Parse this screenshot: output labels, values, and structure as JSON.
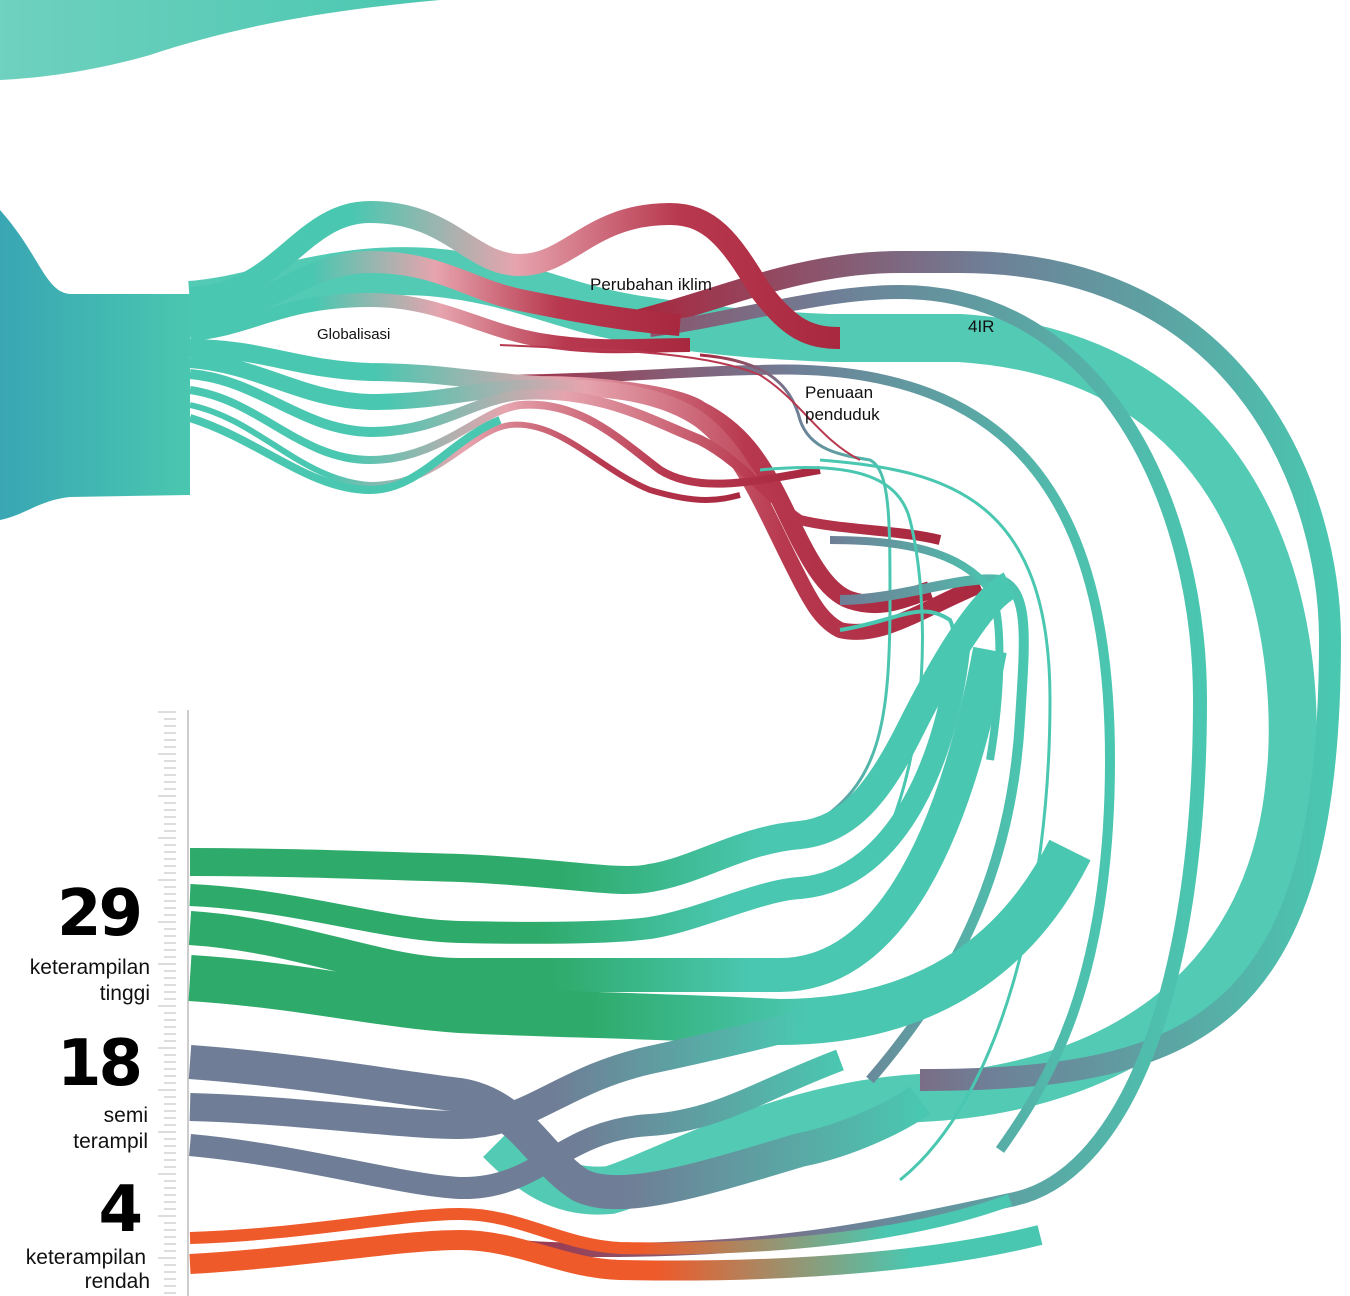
{
  "labels": {
    "globalization": "Globalisasi",
    "climate": "Perubahan iklim",
    "ir4": "4IR",
    "aging_line1": "Penuaan",
    "aging_line2": "penduduk"
  },
  "categories": [
    {
      "number": "29",
      "line1": "keterampilan",
      "line2": "tinggi",
      "color": "#2eaa6a"
    },
    {
      "number": "18",
      "line1": "semi",
      "line2": "terampil",
      "color": "#6f7e96"
    },
    {
      "number": "4",
      "line1": "keterampilan",
      "line2": "rendah",
      "color": "#ee5a2a"
    }
  ],
  "colors": {
    "teal": "#4ac7b0",
    "teal_dark": "#3aa8b0",
    "crimson": "#a8283f",
    "slate": "#6f7e96",
    "green": "#2eaa6a",
    "orange": "#ee5a2a",
    "pink": "#e6a4ae"
  }
}
